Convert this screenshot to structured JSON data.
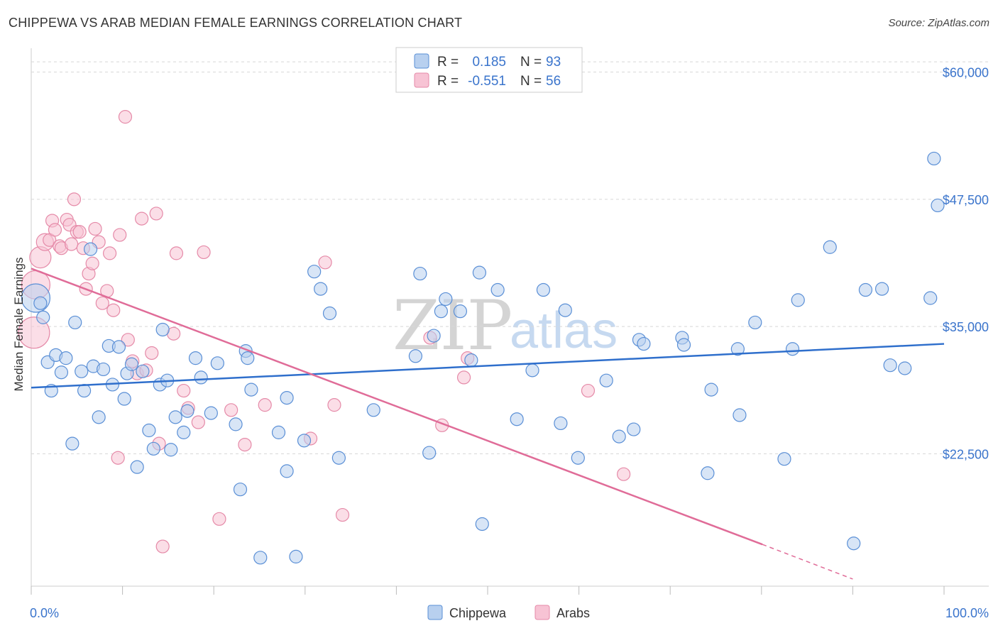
{
  "title": "CHIPPEWA VS ARAB MEDIAN FEMALE EARNINGS CORRELATION CHART",
  "source": "Source: ZipAtlas.com",
  "watermark": {
    "zip": "ZIP",
    "atlas": "atlas"
  },
  "colors": {
    "chippewa_fill": "#b8d0ef",
    "chippewa_stroke": "#5a8fd6",
    "chippewa_line": "#2f6fcc",
    "arabs_fill": "#f7c3d4",
    "arabs_stroke": "#e58aa8",
    "arabs_line": "#e06c98",
    "grid": "#d8d8d8",
    "tick_text": "#3a74cc"
  },
  "legend": {
    "rows": [
      {
        "r_label": "R =",
        "r_value": "0.185",
        "n_label": "N =",
        "n_value": "93"
      },
      {
        "r_label": "R =",
        "r_value": "-0.551",
        "n_label": "N =",
        "n_value": "56"
      }
    ]
  },
  "bottom_legend": {
    "chippewa": "Chippewa",
    "arabs": "Arabs"
  },
  "chart_data": {
    "type": "scatter",
    "title": "CHIPPEWA VS ARAB MEDIAN FEMALE EARNINGS CORRELATION CHART",
    "xlabel": "",
    "ylabel": "Median Female Earnings",
    "xlim": [
      0,
      100
    ],
    "ylim": [
      9500,
      61500
    ],
    "x_tick_labels": [
      "0.0%",
      "100.0%"
    ],
    "y_ticks": [
      22500,
      35000,
      47500,
      60000
    ],
    "y_tick_labels": [
      "$22,500",
      "$35,000",
      "$47,500",
      "$60,000"
    ],
    "grid": true,
    "legend_position": "top-center",
    "series": [
      {
        "name": "Chippewa",
        "r": 0.185,
        "n": 93,
        "trend": [
          [
            0,
            29000
          ],
          [
            100,
            33300
          ]
        ],
        "points": [
          [
            0.5,
            37800,
            20
          ],
          [
            1,
            37300,
            9
          ],
          [
            1.3,
            35900,
            9
          ],
          [
            1.8,
            31500,
            9
          ],
          [
            2.2,
            28700,
            9
          ],
          [
            2.7,
            32200,
            9
          ],
          [
            3.3,
            30500,
            9
          ],
          [
            3.8,
            31900,
            9
          ],
          [
            4.5,
            23500,
            9
          ],
          [
            4.8,
            35400,
            9
          ],
          [
            5.5,
            30600,
            9
          ],
          [
            5.8,
            28700,
            9
          ],
          [
            6.5,
            42600,
            9
          ],
          [
            6.8,
            31100,
            9
          ],
          [
            7.4,
            26100,
            9
          ],
          [
            7.9,
            30800,
            9
          ],
          [
            8.5,
            33100,
            9
          ],
          [
            8.9,
            29300,
            9
          ],
          [
            9.6,
            33000,
            9
          ],
          [
            10.2,
            27900,
            9
          ],
          [
            10.5,
            30400,
            9
          ],
          [
            11,
            31300,
            9
          ],
          [
            11.6,
            21200,
            9
          ],
          [
            12.2,
            30600,
            9
          ],
          [
            12.9,
            24800,
            9
          ],
          [
            13.4,
            23000,
            9
          ],
          [
            14.1,
            29300,
            9
          ],
          [
            14.4,
            34700,
            9
          ],
          [
            14.9,
            29700,
            9
          ],
          [
            15.3,
            22900,
            9
          ],
          [
            15.8,
            26100,
            9
          ],
          [
            16.7,
            24600,
            9
          ],
          [
            17.1,
            26700,
            9
          ],
          [
            18,
            31900,
            9
          ],
          [
            18.6,
            30000,
            9
          ],
          [
            19.7,
            26500,
            9
          ],
          [
            20.4,
            31400,
            9
          ],
          [
            22.4,
            25400,
            9
          ],
          [
            22.9,
            19000,
            9
          ],
          [
            23.5,
            32600,
            9
          ],
          [
            23.7,
            31900,
            9
          ],
          [
            24.1,
            28800,
            9
          ],
          [
            25.1,
            12300,
            9
          ],
          [
            27.1,
            24600,
            9
          ],
          [
            28,
            20800,
            9
          ],
          [
            28,
            28000,
            9
          ],
          [
            29,
            12400,
            9
          ],
          [
            29.9,
            23800,
            9
          ],
          [
            31,
            40400,
            9
          ],
          [
            31.7,
            38700,
            9
          ],
          [
            32.7,
            36300,
            9
          ],
          [
            33.7,
            22100,
            9
          ],
          [
            37.5,
            26800,
            9
          ],
          [
            42.1,
            32100,
            9
          ],
          [
            42.6,
            40200,
            9
          ],
          [
            43.6,
            22600,
            9
          ],
          [
            44.1,
            34100,
            9
          ],
          [
            44.9,
            36500,
            9
          ],
          [
            45.4,
            37700,
            9
          ],
          [
            47,
            36500,
            9
          ],
          [
            48.2,
            31700,
            9
          ],
          [
            49.1,
            40300,
            9
          ],
          [
            49.4,
            15600,
            9
          ],
          [
            51.1,
            38600,
            9
          ],
          [
            53.2,
            25900,
            9
          ],
          [
            54.9,
            30700,
            9
          ],
          [
            56.1,
            38600,
            9
          ],
          [
            58,
            25500,
            9
          ],
          [
            58.5,
            36600,
            9
          ],
          [
            59.9,
            22100,
            9
          ],
          [
            63,
            29700,
            9
          ],
          [
            64.4,
            24200,
            9
          ],
          [
            66,
            24900,
            9
          ],
          [
            66.6,
            33700,
            9
          ],
          [
            67.1,
            33300,
            9
          ],
          [
            71.3,
            33900,
            9
          ],
          [
            71.5,
            33200,
            9
          ],
          [
            74.1,
            20600,
            9
          ],
          [
            74.5,
            28800,
            9
          ],
          [
            77.4,
            32800,
            9
          ],
          [
            77.6,
            26300,
            9
          ],
          [
            79.3,
            35400,
            9
          ],
          [
            82.5,
            22000,
            9
          ],
          [
            83.4,
            32800,
            9
          ],
          [
            84,
            37600,
            9
          ],
          [
            87.5,
            42800,
            9
          ],
          [
            90.1,
            13700,
            9
          ],
          [
            91.4,
            38600,
            9
          ],
          [
            93.2,
            38700,
            9
          ],
          [
            94.1,
            31200,
            9
          ],
          [
            95.7,
            30900,
            9
          ],
          [
            98.5,
            37800,
            9
          ],
          [
            98.9,
            51500,
            9
          ],
          [
            99.3,
            46900,
            9
          ]
        ]
      },
      {
        "name": "Arabs",
        "r": -0.551,
        "n": 56,
        "trend": [
          [
            0,
            40700
          ],
          [
            80.1,
            13600
          ]
        ],
        "trend_dashed": [
          [
            80.1,
            13600
          ],
          [
            90,
            10200
          ]
        ],
        "points": [
          [
            0.3,
            34400,
            22
          ],
          [
            0.5,
            39100,
            20
          ],
          [
            1,
            41800,
            15
          ],
          [
            1.5,
            43300,
            12
          ],
          [
            2,
            43500,
            9
          ],
          [
            2.3,
            45400,
            9
          ],
          [
            2.6,
            44500,
            9
          ],
          [
            3.1,
            42900,
            9
          ],
          [
            3.3,
            42700,
            9
          ],
          [
            3.9,
            45500,
            9
          ],
          [
            4.2,
            45000,
            9
          ],
          [
            4.4,
            43100,
            9
          ],
          [
            4.7,
            47500,
            9
          ],
          [
            5,
            44300,
            9
          ],
          [
            5.3,
            44300,
            9
          ],
          [
            5.7,
            42700,
            9
          ],
          [
            6,
            38700,
            9
          ],
          [
            6.3,
            40200,
            9
          ],
          [
            6.7,
            41200,
            9
          ],
          [
            7,
            44600,
            9
          ],
          [
            7.4,
            43300,
            9
          ],
          [
            7.8,
            37300,
            9
          ],
          [
            8.3,
            38500,
            9
          ],
          [
            8.6,
            42200,
            9
          ],
          [
            9,
            36600,
            9
          ],
          [
            9.5,
            22100,
            9
          ],
          [
            9.7,
            44000,
            9
          ],
          [
            10.3,
            55600,
            9
          ],
          [
            10.6,
            33700,
            9
          ],
          [
            11.1,
            31600,
            9
          ],
          [
            11.6,
            30400,
            9
          ],
          [
            12.1,
            45600,
            9
          ],
          [
            12.6,
            30700,
            9
          ],
          [
            13.2,
            32400,
            9
          ],
          [
            13.7,
            46100,
            9
          ],
          [
            14,
            23500,
            9
          ],
          [
            14.4,
            13400,
            9
          ],
          [
            15.6,
            34300,
            9
          ],
          [
            15.9,
            42200,
            9
          ],
          [
            16.7,
            28700,
            9
          ],
          [
            17.2,
            27000,
            9
          ],
          [
            18.3,
            25600,
            9
          ],
          [
            18.9,
            42300,
            9
          ],
          [
            20.6,
            16100,
            9
          ],
          [
            21.9,
            26800,
            9
          ],
          [
            23.4,
            23400,
            9
          ],
          [
            25.6,
            27300,
            9
          ],
          [
            30.6,
            24000,
            9
          ],
          [
            32.2,
            41300,
            9
          ],
          [
            33.2,
            27300,
            9
          ],
          [
            34.1,
            16500,
            9
          ],
          [
            43.7,
            33900,
            9
          ],
          [
            45,
            25300,
            9
          ],
          [
            47.4,
            30000,
            9
          ],
          [
            47.8,
            31900,
            9
          ],
          [
            61,
            28700,
            9
          ],
          [
            64.9,
            20500,
            9
          ]
        ]
      }
    ]
  }
}
